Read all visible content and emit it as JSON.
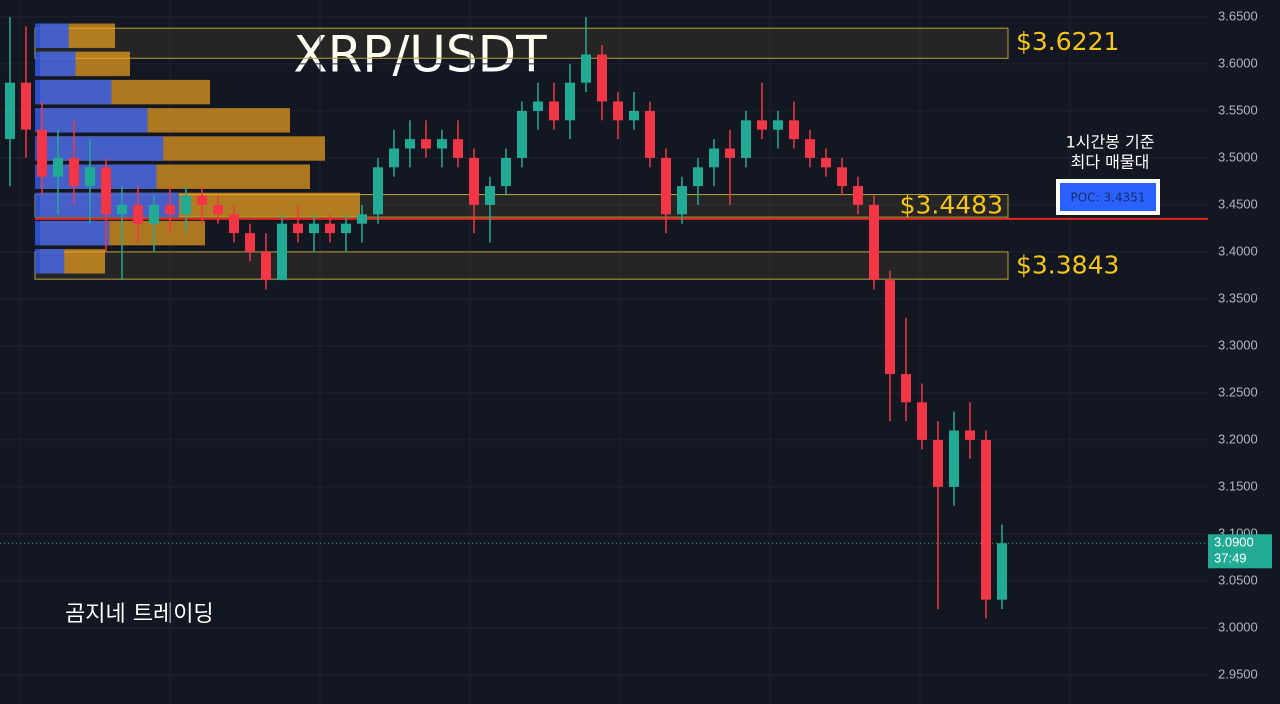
{
  "chart_data": {
    "type": "candlestick",
    "title": "XRP/USDT",
    "watermark": "곰지네 트레이딩",
    "colors": {
      "up": "#22ab94",
      "down": "#f23645"
    },
    "ylim": [
      2.919,
      3.668
    ],
    "yticks": [
      {
        "value": 3.65,
        "label": "3.6500"
      },
      {
        "value": 3.6,
        "label": "3.6000"
      },
      {
        "value": 3.55,
        "label": "3.5500"
      },
      {
        "value": 3.5,
        "label": "3.5000"
      },
      {
        "value": 3.45,
        "label": "3.4500"
      },
      {
        "value": 3.4,
        "label": "3.4000"
      },
      {
        "value": 3.35,
        "label": "3.3500"
      },
      {
        "value": 3.3,
        "label": "3.3000"
      },
      {
        "value": 3.25,
        "label": "3.2500"
      },
      {
        "value": 3.2,
        "label": "3.2000"
      },
      {
        "value": 3.15,
        "label": "3.1500"
      },
      {
        "value": 3.1,
        "label": "3.1000"
      },
      {
        "value": 3.05,
        "label": "3.0500"
      },
      {
        "value": 3.0,
        "label": "3.0000"
      },
      {
        "value": 2.95,
        "label": "2.9500"
      }
    ],
    "grid": true,
    "open": [
      3.52,
      3.58,
      3.53,
      3.48,
      3.5,
      3.47,
      3.49,
      3.44,
      3.45,
      3.43,
      3.45,
      3.44,
      3.46,
      3.45,
      3.44,
      3.42,
      3.4,
      3.37,
      3.43,
      3.42,
      3.43,
      3.42,
      3.43,
      3.44,
      3.49,
      3.51,
      3.52,
      3.51,
      3.52,
      3.5,
      3.45,
      3.47,
      3.5,
      3.55,
      3.56,
      3.54,
      3.58,
      3.61,
      3.56,
      3.54,
      3.55,
      3.5,
      3.44,
      3.47,
      3.49,
      3.51,
      3.5,
      3.54,
      3.53,
      3.54,
      3.52,
      3.5,
      3.49,
      3.47,
      3.45,
      3.37,
      3.27,
      3.24,
      3.2,
      3.15,
      3.21,
      3.2,
      3.03
    ],
    "high": [
      3.65,
      3.64,
      3.56,
      3.53,
      3.54,
      3.52,
      3.5,
      3.47,
      3.47,
      3.46,
      3.47,
      3.47,
      3.47,
      3.46,
      3.45,
      3.43,
      3.42,
      3.44,
      3.45,
      3.44,
      3.44,
      3.44,
      3.45,
      3.5,
      3.53,
      3.54,
      3.54,
      3.53,
      3.54,
      3.51,
      3.48,
      3.51,
      3.56,
      3.58,
      3.58,
      3.6,
      3.65,
      3.62,
      3.57,
      3.57,
      3.56,
      3.51,
      3.48,
      3.5,
      3.52,
      3.53,
      3.55,
      3.58,
      3.55,
      3.56,
      3.53,
      3.51,
      3.5,
      3.48,
      3.46,
      3.38,
      3.33,
      3.26,
      3.22,
      3.23,
      3.24,
      3.21,
      3.11
    ],
    "low": [
      3.47,
      3.5,
      3.46,
      3.44,
      3.45,
      3.43,
      3.4,
      3.37,
      3.41,
      3.4,
      3.42,
      3.42,
      3.43,
      3.43,
      3.41,
      3.39,
      3.36,
      3.37,
      3.41,
      3.4,
      3.41,
      3.4,
      3.41,
      3.43,
      3.48,
      3.49,
      3.5,
      3.49,
      3.49,
      3.42,
      3.41,
      3.46,
      3.49,
      3.53,
      3.53,
      3.52,
      3.57,
      3.54,
      3.52,
      3.53,
      3.49,
      3.42,
      3.43,
      3.45,
      3.47,
      3.45,
      3.49,
      3.52,
      3.51,
      3.51,
      3.49,
      3.48,
      3.46,
      3.44,
      3.36,
      3.22,
      3.22,
      3.19,
      3.02,
      3.13,
      3.18,
      3.01,
      3.02
    ],
    "close": [
      3.58,
      3.53,
      3.48,
      3.5,
      3.47,
      3.49,
      3.44,
      3.45,
      3.43,
      3.45,
      3.44,
      3.46,
      3.45,
      3.44,
      3.42,
      3.4,
      3.37,
      3.43,
      3.42,
      3.43,
      3.42,
      3.43,
      3.44,
      3.49,
      3.51,
      3.52,
      3.51,
      3.52,
      3.5,
      3.45,
      3.47,
      3.5,
      3.55,
      3.56,
      3.54,
      3.58,
      3.61,
      3.56,
      3.54,
      3.55,
      3.5,
      3.44,
      3.47,
      3.49,
      3.51,
      3.5,
      3.54,
      3.53,
      3.54,
      3.52,
      3.5,
      3.49,
      3.47,
      3.45,
      3.37,
      3.27,
      3.24,
      3.2,
      3.15,
      3.21,
      3.2,
      3.03,
      3.09
    ],
    "zones": [
      {
        "label": "$3.6221",
        "value": 3.6221,
        "band": [
          3.606,
          3.638
        ]
      },
      {
        "label": "$3.4483",
        "value": 3.4483,
        "band": [
          3.437,
          3.461
        ]
      },
      {
        "label": "$3.3843",
        "value": 3.3843,
        "band": [
          3.371,
          3.4
        ]
      }
    ],
    "poc": {
      "value": 3.4351,
      "label": "POC: 3.4351",
      "note": [
        "1시간봉 기준",
        "최다 매물대"
      ]
    },
    "current_price": {
      "value": 3.09,
      "label": "3.0900",
      "countdown": "37:49"
    }
  }
}
